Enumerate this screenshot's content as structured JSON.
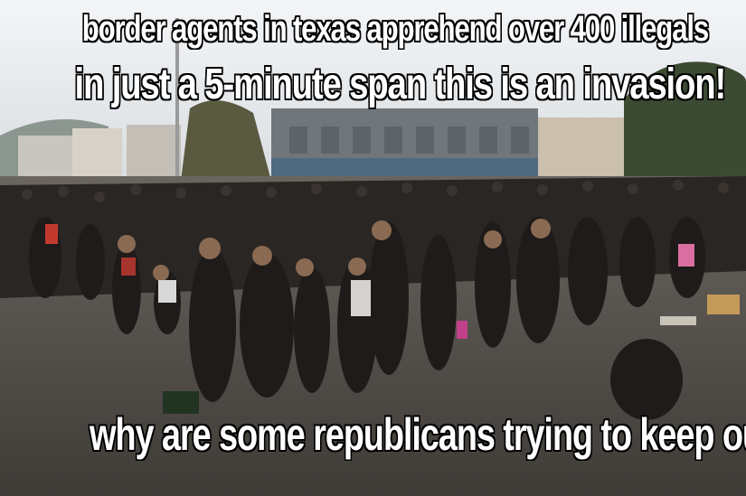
{
  "meme": {
    "top_line_1": "border agents in texas apprehend over 400 illegals",
    "top_line_2": "in just a 5-minute span this is an invasion!",
    "bottom_line": "why are some republicans trying to keep our borders open??"
  },
  "colors": {
    "sky": "#e9ecef",
    "building": "#6f7479",
    "ground": "#4a4642",
    "crowd": "#1e1b1a",
    "caption": "#ffffff"
  }
}
